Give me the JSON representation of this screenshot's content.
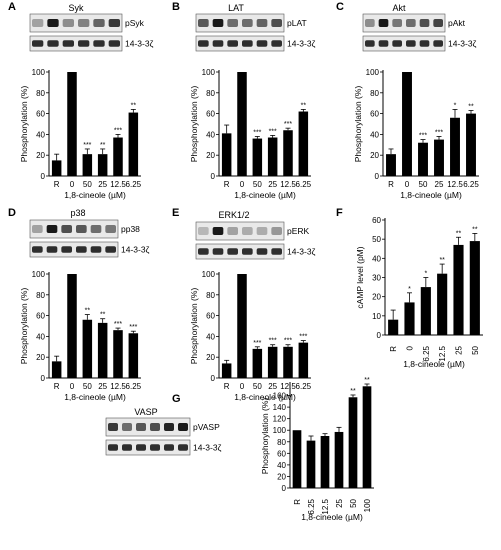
{
  "chart_data": [
    {
      "type": "bar",
      "panel": "A",
      "blot": {
        "title": "Syk",
        "labels": [
          "pSyk",
          "14-3-3ζ"
        ]
      },
      "ylabel": "Phosphorylation (%)",
      "xlabel": "1,8-cineole (µM)",
      "ylim": [
        0,
        100
      ],
      "yticks": [
        "0",
        "20",
        "40",
        "60",
        "80",
        "100"
      ],
      "categories": [
        "R",
        "0",
        "50",
        "25",
        "12.5",
        "6.25"
      ],
      "values": [
        15,
        100,
        21,
        21,
        37,
        61
      ],
      "errors": [
        6,
        0,
        5,
        5,
        3,
        3
      ],
      "significance": [
        "",
        "",
        "***",
        "**",
        "***",
        "**"
      ]
    },
    {
      "type": "bar",
      "panel": "B",
      "blot": {
        "title": "LAT",
        "labels": [
          "pLAT",
          "14-3-3ζ"
        ]
      },
      "ylabel": "Phosphorylation (%)",
      "xlabel": "1,8-cineole (µM)",
      "ylim": [
        0,
        100
      ],
      "yticks": [
        "0",
        "20",
        "40",
        "60",
        "80",
        "100"
      ],
      "categories": [
        "R",
        "0",
        "50",
        "25",
        "12.5",
        "6.25"
      ],
      "values": [
        41,
        100,
        36,
        37,
        44,
        62
      ],
      "errors": [
        8,
        0,
        2,
        2,
        2,
        2
      ],
      "significance": [
        "",
        "",
        "***",
        "***",
        "***",
        "**"
      ]
    },
    {
      "type": "bar",
      "panel": "C",
      "blot": {
        "title": "Akt",
        "labels": [
          "pAkt",
          "14-3-3ζ"
        ]
      },
      "ylabel": "Phosphorylation (%)",
      "xlabel": "1,8-cineole (µM)",
      "ylim": [
        0,
        100
      ],
      "yticks": [
        "0",
        "20",
        "40",
        "60",
        "80",
        "100"
      ],
      "categories": [
        "R",
        "0",
        "50",
        "25",
        "12.5",
        "6.25"
      ],
      "values": [
        21,
        100,
        32,
        35,
        56,
        60
      ],
      "errors": [
        5,
        0,
        3,
        3,
        8,
        3
      ],
      "significance": [
        "",
        "",
        "***",
        "***",
        "*",
        "**"
      ]
    },
    {
      "type": "bar",
      "panel": "D",
      "blot": {
        "title": "p38",
        "labels": [
          "pp38",
          "14-3-3ζ"
        ]
      },
      "ylabel": "Phosphorylation (%)",
      "xlabel": "1,8-cineole (µM)",
      "ylim": [
        0,
        100
      ],
      "yticks": [
        "0",
        "20",
        "40",
        "60",
        "80",
        "100"
      ],
      "categories": [
        "R",
        "0",
        "50",
        "25",
        "12.5",
        "6.25"
      ],
      "values": [
        16,
        100,
        56,
        53,
        46,
        43
      ],
      "errors": [
        5,
        0,
        5,
        4,
        2,
        2
      ],
      "significance": [
        "",
        "",
        "**",
        "**",
        "***",
        "***"
      ]
    },
    {
      "type": "bar",
      "panel": "E",
      "blot": {
        "title": "ERK1/2",
        "labels": [
          "pERK",
          "14-3-3ζ"
        ]
      },
      "ylabel": "Phosphorylation (%)",
      "xlabel": "1,8-cineole (µM)",
      "ylim": [
        0,
        100
      ],
      "yticks": [
        "0",
        "20",
        "40",
        "60",
        "80",
        "100"
      ],
      "categories": [
        "R",
        "0",
        "50",
        "25",
        "12.5",
        "6.25"
      ],
      "values": [
        14,
        100,
        28,
        30,
        30,
        34
      ],
      "errors": [
        3,
        0,
        2,
        2,
        2,
        2
      ],
      "significance": [
        "",
        "",
        "***",
        "***",
        "***",
        "***"
      ]
    },
    {
      "type": "bar",
      "panel": "F",
      "ylabel": "cAMP level (pM)",
      "xlabel": "1,8-cineole (µM)",
      "ylim": [
        0,
        60
      ],
      "yticks": [
        "0",
        "10",
        "20",
        "30",
        "40",
        "50",
        "60"
      ],
      "categories": [
        "R",
        "0",
        "6.25",
        "12.5",
        "25",
        "50"
      ],
      "values": [
        8,
        17,
        25,
        32,
        47,
        49
      ],
      "errors": [
        5,
        5,
        5,
        5,
        4,
        4
      ],
      "significance": [
        "",
        "*",
        "*",
        "**",
        "**",
        "**"
      ]
    },
    {
      "type": "bar",
      "panel": "G",
      "blot": {
        "title": "VASP",
        "labels": [
          "pVASP",
          "14-3-3ζ"
        ]
      },
      "ylabel": "Phosphorylation (%)",
      "xlabel": "1,8-cineole (µM)",
      "ylim": [
        0,
        180
      ],
      "yticks": [
        "0",
        "20",
        "40",
        "60",
        "80",
        "100",
        "120",
        "140",
        "160"
      ],
      "categories": [
        "R",
        "6.25",
        "12.5",
        "25",
        "50",
        "100"
      ],
      "values": [
        100,
        82,
        90,
        97,
        157,
        176
      ],
      "errors": [
        0,
        8,
        4,
        8,
        4,
        4
      ],
      "significance": [
        "",
        "",
        "",
        "",
        "**",
        "**"
      ]
    }
  ]
}
